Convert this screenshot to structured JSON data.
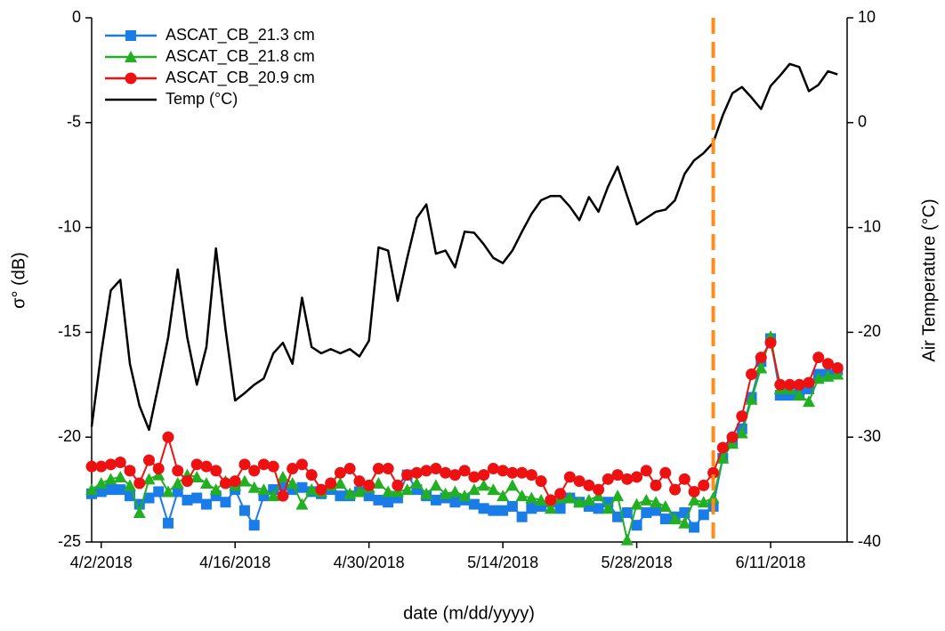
{
  "chart_data": {
    "type": "line",
    "xlabel": "date (m/dd/yyyy)",
    "ylabel": "σ° (dB)",
    "y2label": "Air Temperature (°C)",
    "xlim": [
      "2018-04-01",
      "2018-06-19"
    ],
    "xticks": [
      {
        "value": "2018-04-02",
        "label": "4/2/2018"
      },
      {
        "value": "2018-04-16",
        "label": "4/16/2018"
      },
      {
        "value": "2018-04-30",
        "label": "4/30/2018"
      },
      {
        "value": "2018-05-14",
        "label": "5/14/2018"
      },
      {
        "value": "2018-05-28",
        "label": "5/28/2018"
      },
      {
        "value": "2018-06-11",
        "label": "6/11/2018"
      }
    ],
    "ylim": [
      -25,
      0
    ],
    "yticks": [
      0,
      -5,
      -10,
      -15,
      -20,
      -25
    ],
    "y2lim": [
      -40,
      10
    ],
    "y2ticks": [
      10,
      0,
      -10,
      -20,
      -30,
      -40
    ],
    "legend": "upper left",
    "vline": {
      "x": "2018-06-05",
      "color": "#ff8c1a"
    },
    "x": [
      "2018-04-01",
      "2018-04-02",
      "2018-04-03",
      "2018-04-04",
      "2018-04-05",
      "2018-04-06",
      "2018-04-07",
      "2018-04-08",
      "2018-04-09",
      "2018-04-10",
      "2018-04-11",
      "2018-04-12",
      "2018-04-13",
      "2018-04-14",
      "2018-04-15",
      "2018-04-16",
      "2018-04-17",
      "2018-04-18",
      "2018-04-19",
      "2018-04-20",
      "2018-04-21",
      "2018-04-22",
      "2018-04-23",
      "2018-04-24",
      "2018-04-25",
      "2018-04-26",
      "2018-04-27",
      "2018-04-28",
      "2018-04-29",
      "2018-04-30",
      "2018-05-01",
      "2018-05-02",
      "2018-05-03",
      "2018-05-04",
      "2018-05-05",
      "2018-05-06",
      "2018-05-07",
      "2018-05-08",
      "2018-05-09",
      "2018-05-10",
      "2018-05-11",
      "2018-05-12",
      "2018-05-13",
      "2018-05-14",
      "2018-05-15",
      "2018-05-16",
      "2018-05-17",
      "2018-05-18",
      "2018-05-19",
      "2018-05-20",
      "2018-05-21",
      "2018-05-22",
      "2018-05-23",
      "2018-05-24",
      "2018-05-25",
      "2018-05-26",
      "2018-05-27",
      "2018-05-28",
      "2018-05-29",
      "2018-05-30",
      "2018-05-31",
      "2018-06-01",
      "2018-06-02",
      "2018-06-03",
      "2018-06-04",
      "2018-06-05",
      "2018-06-06",
      "2018-06-07",
      "2018-06-08",
      "2018-06-09",
      "2018-06-10",
      "2018-06-11",
      "2018-06-12",
      "2018-06-13",
      "2018-06-14",
      "2018-06-15",
      "2018-06-16",
      "2018-06-17",
      "2018-06-18"
    ],
    "series": [
      {
        "name": "ASCAT_CB_21.3 cm",
        "color": "#1a7ce6",
        "marker": "square",
        "values": [
          -22.7,
          -22.6,
          -22.5,
          -22.5,
          -22.8,
          -23.2,
          -22.9,
          -22.6,
          -24.1,
          -22.6,
          -23,
          -22.9,
          -23.2,
          -22.8,
          -23.1,
          -22.5,
          -23.5,
          -24.2,
          -22.8,
          -22.5,
          -22.3,
          -22.5,
          -22.4,
          -22.6,
          -22.7,
          -22.5,
          -22.8,
          -22.8,
          -22.6,
          -22.8,
          -23,
          -23.1,
          -22.9,
          -21.8,
          -22.5,
          -22.8,
          -23,
          -22.9,
          -23.1,
          -23,
          -23.2,
          -23.4,
          -23.5,
          -23.5,
          -23.3,
          -23.8,
          -23.4,
          -23.3,
          -23.1,
          -23.4,
          -22.9,
          -23.1,
          -23.3,
          -23.4,
          -23.1,
          -23.8,
          -23.6,
          -24.2,
          -23.6,
          -23.5,
          -23.9,
          -23.8,
          -23.6,
          -24.3,
          -23.7,
          -23.3,
          -21,
          -20.2,
          -19.6,
          -18.1,
          -16.4,
          -15.3,
          -18,
          -18,
          -17.9,
          -17.7,
          -17,
          -17,
          -16.8
        ]
      },
      {
        "name": "ASCAT_CB_21.8 cm",
        "color": "#22b022",
        "marker": "triangle",
        "values": [
          -22.5,
          -22.2,
          -22,
          -21.9,
          -22.3,
          -23.6,
          -22,
          -21.8,
          -22.6,
          -22.2,
          -21.8,
          -21.9,
          -22.2,
          -22.5,
          -22.1,
          -22.3,
          -22.1,
          -22.4,
          -22.5,
          -22.8,
          -21.9,
          -22.2,
          -23.2,
          -22.5,
          -22.6,
          -22.3,
          -22.2,
          -22.7,
          -22.6,
          -22.4,
          -22.2,
          -22.6,
          -22.6,
          -22.5,
          -22.2,
          -22.7,
          -22.3,
          -22.7,
          -22.6,
          -22.8,
          -22.5,
          -22.3,
          -22.5,
          -22.8,
          -22.3,
          -22.8,
          -22.9,
          -23,
          -23.4,
          -22.9,
          -22.9,
          -23.1,
          -23,
          -22.8,
          -23.4,
          -22.8,
          -24.9,
          -23.2,
          -23,
          -23.1,
          -23.3,
          -23.9,
          -24.1,
          -23,
          -23.1,
          -22.9,
          -21,
          -20.3,
          -19.8,
          -18.2,
          -16.7,
          -15.2,
          -17.7,
          -17.7,
          -18,
          -18.3,
          -17.2,
          -17.1,
          -17
        ]
      },
      {
        "name": "ASCAT_CB_20.9 cm",
        "color": "#ee1111",
        "marker": "circle",
        "values": [
          -21.4,
          -21.4,
          -21.3,
          -21.2,
          -21.6,
          -22.2,
          -21.1,
          -21.5,
          -20,
          -21.6,
          -22.1,
          -21.3,
          -21.4,
          -21.6,
          -22.2,
          -22.1,
          -21.3,
          -21.6,
          -21.3,
          -21.4,
          -22.8,
          -21.5,
          -21.3,
          -21.8,
          -22.5,
          -22.2,
          -21.7,
          -21.5,
          -22.1,
          -22.3,
          -21.5,
          -21.5,
          -22.3,
          -21.8,
          -21.7,
          -21.6,
          -21.5,
          -21.7,
          -21.8,
          -21.6,
          -21.9,
          -21.8,
          -21.5,
          -21.6,
          -21.7,
          -21.7,
          -21.8,
          -22.1,
          -23,
          -22.7,
          -21.9,
          -22.1,
          -22.3,
          -22.5,
          -22,
          -21.8,
          -22,
          -21.9,
          -21.6,
          -22.3,
          -21.7,
          -22.5,
          -22,
          -22.6,
          -22.3,
          -21.7,
          -20.5,
          -20,
          -19,
          -17,
          -16.2,
          -15.5,
          -17.5,
          -17.5,
          -17.5,
          -17.4,
          -16.2,
          -16.5,
          -16.7
        ]
      },
      {
        "name": "Temp (°C)",
        "color": "#000000",
        "axis": "y2",
        "values": [
          -29,
          -22,
          -16,
          -15,
          -23,
          -27,
          -29.3,
          -25,
          -20.5,
          -14,
          -20.5,
          -25,
          -21.4,
          -12,
          -19.7,
          -26.5,
          -25.8,
          -25,
          -24.4,
          -22,
          -21,
          -23,
          -16.7,
          -21.4,
          -22,
          -21.6,
          -22,
          -21.6,
          -22.3,
          -20.8,
          -11.9,
          -12.2,
          -17,
          -12.9,
          -9.1,
          -7.8,
          -12.5,
          -12.2,
          -13.8,
          -10.4,
          -10.5,
          -11.6,
          -12.9,
          -13.4,
          -12.2,
          -10.4,
          -8.7,
          -7.4,
          -7,
          -7,
          -8,
          -9.3,
          -7.1,
          -8.5,
          -6.1,
          -4.2,
          -7,
          -9.7,
          -9.1,
          -8.5,
          -8.3,
          -7.4,
          -4.9,
          -3.6,
          -2.9,
          -1.9,
          0.7,
          2.8,
          3.4,
          2.4,
          1.3,
          3.5,
          4.5,
          5.6,
          5.3,
          3,
          3.6,
          4.9,
          4.6
        ]
      }
    ]
  }
}
